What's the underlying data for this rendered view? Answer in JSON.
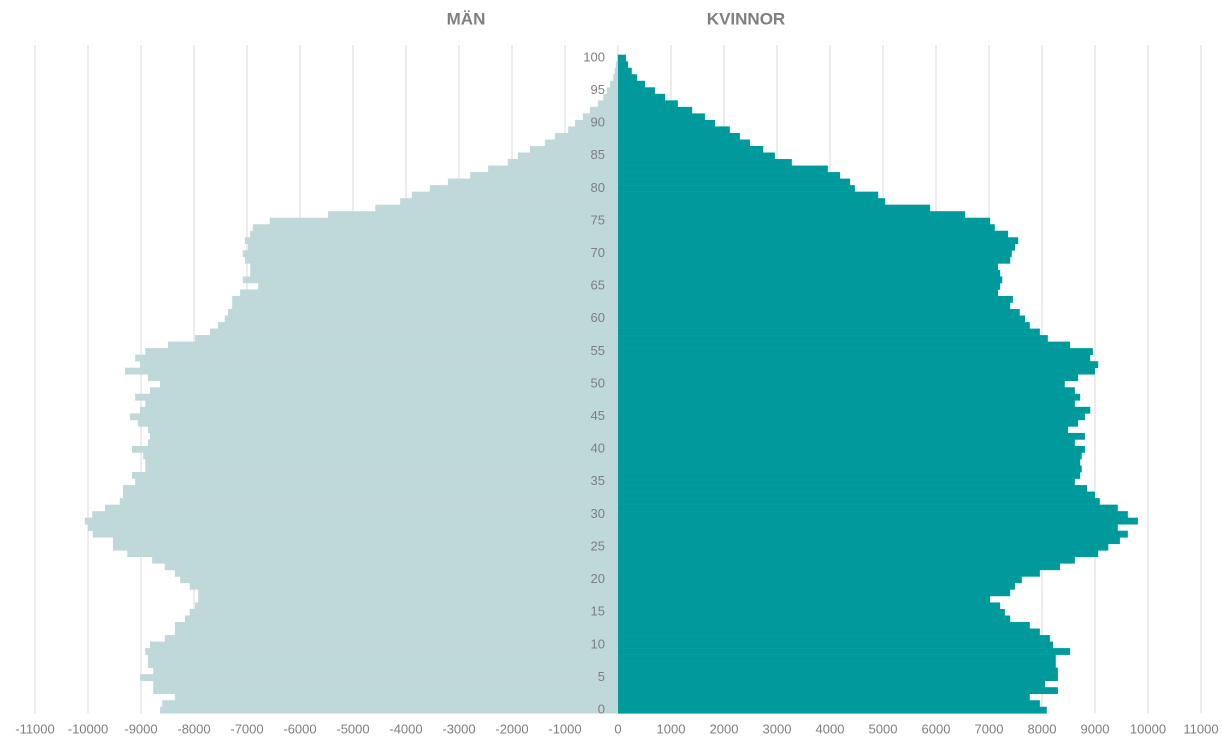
{
  "chart_data": {
    "type": "bar",
    "orientation": "horizontal",
    "categories": [
      0,
      null,
      null,
      null,
      null,
      5,
      null,
      null,
      null,
      null,
      10,
      null,
      null,
      null,
      null,
      15,
      null,
      null,
      null,
      null,
      20,
      null,
      null,
      null,
      null,
      25,
      null,
      null,
      null,
      null,
      30,
      null,
      null,
      null,
      null,
      35,
      null,
      null,
      null,
      null,
      40,
      null,
      null,
      null,
      null,
      45,
      null,
      null,
      null,
      null,
      50,
      null,
      null,
      null,
      null,
      55,
      null,
      null,
      null,
      null,
      60,
      null,
      null,
      null,
      null,
      65,
      null,
      null,
      null,
      null,
      70,
      null,
      null,
      null,
      null,
      75,
      null,
      null,
      null,
      null,
      80,
      null,
      null,
      null,
      null,
      85,
      null,
      null,
      null,
      null,
      90,
      null,
      null,
      null,
      null,
      95,
      null,
      null,
      null,
      null,
      100
    ],
    "series": [
      {
        "name": "MÄN",
        "color": "#bfd8d9",
        "values": [
          -8640,
          -8600,
          -8360,
          -8770,
          -8770,
          -9020,
          -8770,
          -8870,
          -8870,
          -8920,
          -8830,
          -8550,
          -8360,
          -8360,
          -8170,
          -8080,
          -7980,
          -7920,
          -7920,
          -8080,
          -8260,
          -8360,
          -8550,
          -8790,
          -9260,
          -9530,
          -9530,
          -9910,
          -10000,
          -10060,
          -9920,
          -9680,
          -9400,
          -9340,
          -9340,
          -9110,
          -9170,
          -8920,
          -8920,
          -8960,
          -9170,
          -8870,
          -8830,
          -8870,
          -9060,
          -9210,
          -9020,
          -8920,
          -9110,
          -8830,
          -8640,
          -8870,
          -9300,
          -9020,
          -9110,
          -8920,
          -8490,
          -7980,
          -7700,
          -7550,
          -7420,
          -7360,
          -7280,
          -7280,
          -7130,
          -6790,
          -7080,
          -6940,
          -6940,
          -7040,
          -7080,
          -6980,
          -7040,
          -6940,
          -6890,
          -6570,
          -5470,
          -4580,
          -4110,
          -3890,
          -3550,
          -3210,
          -2790,
          -2450,
          -2080,
          -1890,
          -1660,
          -1380,
          -1190,
          -940,
          -810,
          -660,
          -530,
          -380,
          -280,
          -210,
          -150,
          -90,
          -60,
          -40,
          -20
        ]
      },
      {
        "name": "KVINNOR",
        "color": "#009a9d",
        "values": [
          8090,
          7960,
          7770,
          8300,
          8060,
          8300,
          8300,
          8260,
          8260,
          8530,
          8210,
          8150,
          7960,
          7770,
          7400,
          7300,
          7210,
          7020,
          7400,
          7490,
          7620,
          7960,
          8340,
          8620,
          9060,
          9250,
          9470,
          9620,
          9430,
          9810,
          9620,
          9430,
          9090,
          9000,
          8850,
          8620,
          8720,
          8750,
          8720,
          8750,
          8810,
          8620,
          8810,
          8490,
          8680,
          8810,
          8910,
          8620,
          8720,
          8620,
          8430,
          8680,
          9000,
          9060,
          8910,
          8960,
          8530,
          8110,
          7960,
          7770,
          7680,
          7580,
          7400,
          7450,
          7170,
          7210,
          7250,
          7210,
          7170,
          7400,
          7430,
          7490,
          7550,
          7360,
          7110,
          7020,
          6550,
          5890,
          5040,
          4910,
          4470,
          4380,
          4190,
          3960,
          3280,
          2960,
          2740,
          2490,
          2300,
          2110,
          1830,
          1640,
          1400,
          1130,
          890,
          700,
          510,
          360,
          260,
          190,
          150
        ]
      }
    ],
    "xlim": [
      -11000,
      11000
    ],
    "xticks": [
      -11000,
      -10000,
      -9000,
      -8000,
      -7000,
      -6000,
      -5000,
      -4000,
      -3000,
      -2000,
      -1000,
      0,
      1000,
      2000,
      3000,
      4000,
      5000,
      6000,
      7000,
      8000,
      9000,
      10000,
      11000
    ],
    "grid": true
  }
}
